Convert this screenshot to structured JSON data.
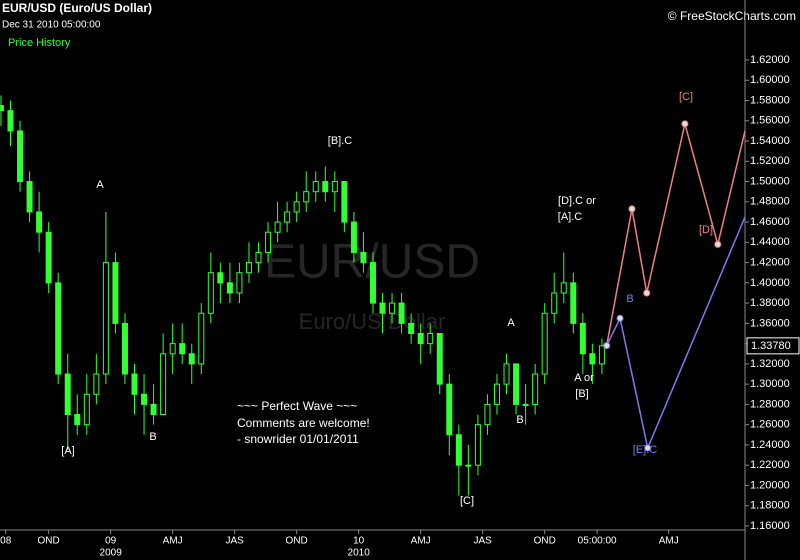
{
  "header": {
    "title": "EUR/USD (Euro/US Dollar)",
    "timestamp": "Dec 31 2010 05:00:00",
    "panel_label": "Price History",
    "credit": "© FreeStockCharts.com"
  },
  "chart_data": {
    "type": "candlestick",
    "watermark": "EUR/USD",
    "watermark_subtitle": "Euro/US Dollar",
    "xlim": [
      -0.2,
      156
    ],
    "ylim": [
      1.156,
      1.66
    ],
    "xticks": [
      {
        "value": 1,
        "label": "08"
      },
      {
        "value": 10,
        "label": "OND"
      },
      {
        "value": 23,
        "label": "09"
      },
      {
        "value": 36,
        "label": "AMJ"
      },
      {
        "value": 49,
        "label": "JAS"
      },
      {
        "value": 62,
        "label": "OND"
      },
      {
        "value": 75,
        "label": "10"
      },
      {
        "value": 88,
        "label": "AMJ"
      },
      {
        "value": 101,
        "label": "JAS"
      },
      {
        "value": 114,
        "label": "OND"
      },
      {
        "value": 125,
        "label": "05:00:00"
      },
      {
        "value": 140,
        "label": "AMJ"
      }
    ],
    "xticks_years": [
      {
        "value": 23,
        "label": "2009"
      },
      {
        "value": 75,
        "label": "2010"
      }
    ],
    "yticks": [
      {
        "value": 1.16,
        "label": "1.16000"
      },
      {
        "value": 1.18,
        "label": "1.18000"
      },
      {
        "value": 1.2,
        "label": "1.20000"
      },
      {
        "value": 1.22,
        "label": "1.22000"
      },
      {
        "value": 1.24,
        "label": "1.24000"
      },
      {
        "value": 1.26,
        "label": "1.26000"
      },
      {
        "value": 1.28,
        "label": "1.28000"
      },
      {
        "value": 1.3,
        "label": "1.30000"
      },
      {
        "value": 1.32,
        "label": "1.32000"
      },
      {
        "value": 1.34,
        "label": "1.34000"
      },
      {
        "value": 1.36,
        "label": "1.36000"
      },
      {
        "value": 1.38,
        "label": "1.38000"
      },
      {
        "value": 1.4,
        "label": "1.40000"
      },
      {
        "value": 1.42,
        "label": "1.42000"
      },
      {
        "value": 1.44,
        "label": "1.44000"
      },
      {
        "value": 1.46,
        "label": "1.46000"
      },
      {
        "value": 1.48,
        "label": "1.48000"
      },
      {
        "value": 1.5,
        "label": "1.50000"
      },
      {
        "value": 1.52,
        "label": "1.52000"
      },
      {
        "value": 1.54,
        "label": "1.54000"
      },
      {
        "value": 1.56,
        "label": "1.56000"
      },
      {
        "value": 1.58,
        "label": "1.58000"
      },
      {
        "value": 1.6,
        "label": "1.60000"
      },
      {
        "value": 1.62,
        "label": "1.62000"
      }
    ],
    "last_price": {
      "value": 1.3378,
      "label": "1.33780"
    },
    "series": [
      {
        "color": "#33ff33",
        "x": [
          0,
          2,
          4,
          6,
          8,
          10,
          12,
          14,
          16,
          18,
          20,
          22,
          24,
          26,
          28,
          30,
          32,
          34,
          36,
          38,
          40,
          42,
          44,
          46,
          48,
          50,
          52,
          54,
          56,
          58,
          60,
          62,
          64,
          66,
          68,
          70,
          72,
          74,
          76,
          78,
          80,
          82,
          84,
          86,
          88,
          90,
          92,
          94,
          96,
          98,
          100,
          102,
          104,
          106,
          108,
          110,
          112,
          114,
          116,
          118,
          120,
          122,
          124,
          126
        ],
        "values": [
          [
            1.575,
            1.585,
            1.555,
            1.57
          ],
          [
            1.57,
            1.58,
            1.535,
            1.55
          ],
          [
            1.55,
            1.56,
            1.49,
            1.5
          ],
          [
            1.5,
            1.51,
            1.46,
            1.47
          ],
          [
            1.47,
            1.49,
            1.43,
            1.45
          ],
          [
            1.45,
            1.46,
            1.39,
            1.4
          ],
          [
            1.4,
            1.41,
            1.3,
            1.31
          ],
          [
            1.31,
            1.33,
            1.235,
            1.27
          ],
          [
            1.27,
            1.29,
            1.25,
            1.26
          ],
          [
            1.26,
            1.31,
            1.25,
            1.29
          ],
          [
            1.29,
            1.33,
            1.28,
            1.31
          ],
          [
            1.31,
            1.47,
            1.3,
            1.42
          ],
          [
            1.42,
            1.43,
            1.35,
            1.36
          ],
          [
            1.36,
            1.37,
            1.3,
            1.31
          ],
          [
            1.31,
            1.32,
            1.27,
            1.29
          ],
          [
            1.29,
            1.31,
            1.25,
            1.28
          ],
          [
            1.28,
            1.3,
            1.26,
            1.27
          ],
          [
            1.27,
            1.35,
            1.27,
            1.33
          ],
          [
            1.33,
            1.36,
            1.31,
            1.34
          ],
          [
            1.34,
            1.36,
            1.32,
            1.33
          ],
          [
            1.33,
            1.34,
            1.3,
            1.32
          ],
          [
            1.32,
            1.38,
            1.31,
            1.37
          ],
          [
            1.37,
            1.43,
            1.36,
            1.41
          ],
          [
            1.41,
            1.42,
            1.38,
            1.4
          ],
          [
            1.4,
            1.42,
            1.38,
            1.39
          ],
          [
            1.39,
            1.42,
            1.38,
            1.41
          ],
          [
            1.41,
            1.44,
            1.4,
            1.42
          ],
          [
            1.42,
            1.44,
            1.41,
            1.43
          ],
          [
            1.43,
            1.46,
            1.42,
            1.45
          ],
          [
            1.45,
            1.48,
            1.44,
            1.46
          ],
          [
            1.46,
            1.48,
            1.45,
            1.47
          ],
          [
            1.47,
            1.49,
            1.46,
            1.48
          ],
          [
            1.48,
            1.51,
            1.47,
            1.49
          ],
          [
            1.49,
            1.51,
            1.48,
            1.5
          ],
          [
            1.5,
            1.515,
            1.48,
            1.49
          ],
          [
            1.49,
            1.51,
            1.47,
            1.5
          ],
          [
            1.5,
            1.5,
            1.45,
            1.46
          ],
          [
            1.46,
            1.47,
            1.42,
            1.43
          ],
          [
            1.43,
            1.45,
            1.41,
            1.42
          ],
          [
            1.42,
            1.43,
            1.37,
            1.38
          ],
          [
            1.38,
            1.39,
            1.35,
            1.37
          ],
          [
            1.37,
            1.39,
            1.36,
            1.38
          ],
          [
            1.38,
            1.39,
            1.35,
            1.36
          ],
          [
            1.36,
            1.37,
            1.34,
            1.35
          ],
          [
            1.35,
            1.36,
            1.32,
            1.34
          ],
          [
            1.34,
            1.36,
            1.33,
            1.35
          ],
          [
            1.35,
            1.35,
            1.29,
            1.3
          ],
          [
            1.3,
            1.31,
            1.23,
            1.25
          ],
          [
            1.25,
            1.26,
            1.19,
            1.22
          ],
          [
            1.22,
            1.24,
            1.19,
            1.22
          ],
          [
            1.22,
            1.27,
            1.21,
            1.26
          ],
          [
            1.26,
            1.29,
            1.25,
            1.28
          ],
          [
            1.28,
            1.31,
            1.27,
            1.3
          ],
          [
            1.3,
            1.33,
            1.29,
            1.32
          ],
          [
            1.32,
            1.32,
            1.27,
            1.28
          ],
          [
            1.28,
            1.3,
            1.26,
            1.28
          ],
          [
            1.28,
            1.32,
            1.27,
            1.31
          ],
          [
            1.31,
            1.38,
            1.3,
            1.37
          ],
          [
            1.37,
            1.41,
            1.36,
            1.39
          ],
          [
            1.39,
            1.43,
            1.38,
            1.4
          ],
          [
            1.4,
            1.41,
            1.35,
            1.36
          ],
          [
            1.36,
            1.37,
            1.31,
            1.33
          ],
          [
            1.33,
            1.34,
            1.3,
            1.32
          ],
          [
            1.32,
            1.345,
            1.31,
            1.3378
          ]
        ]
      }
    ],
    "projections": [
      {
        "color": "#f08080",
        "x": [
          127,
          132.3,
          135.4,
          143.4,
          150.3,
          156
        ],
        "values": [
          1.338,
          1.473,
          1.39,
          1.557,
          1.438,
          1.55
        ]
      },
      {
        "color": "#7b7bee",
        "x": [
          127,
          129.8,
          135.6,
          156
        ],
        "values": [
          1.338,
          1.365,
          1.237,
          1.465
        ]
      }
    ],
    "annotations": [
      "[A]",
      "A",
      "B",
      "[B].C",
      "[D].C or",
      "[A].C",
      "A",
      "B",
      "A or",
      "[B]",
      "[C]",
      "[C]",
      "[D]",
      "B",
      "[E].C"
    ],
    "note": [
      "~~~ Perfect Wave ~~~",
      "Comments are welcome!",
      "- snowrider  01/01/2011"
    ]
  }
}
